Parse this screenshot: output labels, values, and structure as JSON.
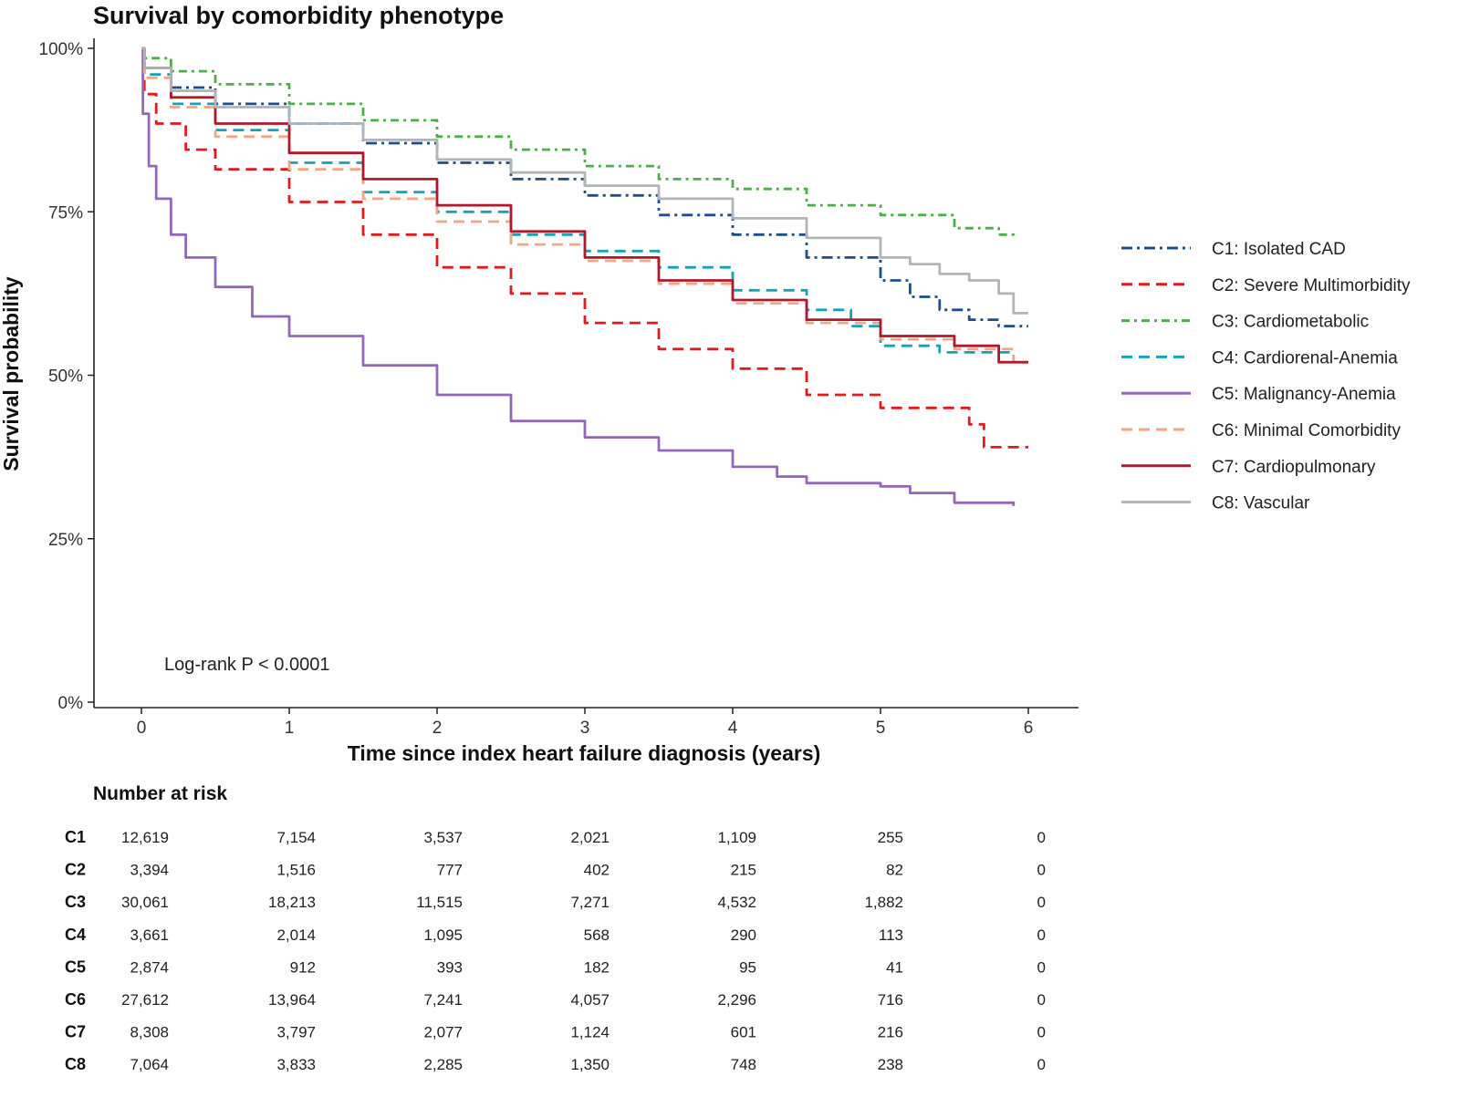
{
  "chart_data": {
    "type": "line",
    "title": "Survival by comorbidity phenotype",
    "xlabel": "Time since index heart failure diagnosis (years)",
    "ylabel": "Survival probability",
    "xlim": [
      0,
      6
    ],
    "ylim": [
      0,
      1
    ],
    "x_ticks": [
      0,
      1,
      2,
      3,
      4,
      5,
      6
    ],
    "y_ticks": [
      {
        "value": 0,
        "label": "0%"
      },
      {
        "value": 0.25,
        "label": "25%"
      },
      {
        "value": 0.5,
        "label": "50%"
      },
      {
        "value": 0.75,
        "label": "75%"
      },
      {
        "value": 1,
        "label": "100%"
      }
    ],
    "grid": false,
    "legend_position": "right",
    "annotation": "Log-rank P < 0.0001",
    "series": [
      {
        "name": "C1: Isolated CAD",
        "color": "#1f4e8c",
        "dash": "dashdot",
        "points": [
          [
            0,
            1.0
          ],
          [
            0.02,
            0.97
          ],
          [
            0.2,
            0.94
          ],
          [
            0.5,
            0.915
          ],
          [
            1,
            0.885
          ],
          [
            1.5,
            0.855
          ],
          [
            2,
            0.825
          ],
          [
            2.5,
            0.8
          ],
          [
            3,
            0.775
          ],
          [
            3.5,
            0.745
          ],
          [
            4,
            0.715
          ],
          [
            4.5,
            0.68
          ],
          [
            5,
            0.645
          ],
          [
            5.2,
            0.62
          ],
          [
            5.4,
            0.6
          ],
          [
            5.6,
            0.585
          ],
          [
            5.8,
            0.575
          ],
          [
            6.0,
            0.575
          ]
        ]
      },
      {
        "name": "C2: Severe Multimorbidity",
        "color": "#e31a1c",
        "dash": "dashed",
        "points": [
          [
            0,
            1.0
          ],
          [
            0.02,
            0.93
          ],
          [
            0.1,
            0.885
          ],
          [
            0.3,
            0.845
          ],
          [
            0.5,
            0.815
          ],
          [
            1,
            0.765
          ],
          [
            1.5,
            0.715
          ],
          [
            2,
            0.665
          ],
          [
            2.5,
            0.625
          ],
          [
            3,
            0.58
          ],
          [
            3.5,
            0.54
          ],
          [
            4,
            0.51
          ],
          [
            4.5,
            0.47
          ],
          [
            5,
            0.45
          ],
          [
            5.5,
            0.45
          ],
          [
            5.6,
            0.425
          ],
          [
            5.7,
            0.39
          ],
          [
            6.0,
            0.39
          ]
        ]
      },
      {
        "name": "C3: Cardiometabolic",
        "color": "#4daf4a",
        "dash": "dotdash",
        "points": [
          [
            0,
            1.0
          ],
          [
            0.02,
            0.985
          ],
          [
            0.2,
            0.965
          ],
          [
            0.5,
            0.945
          ],
          [
            1,
            0.915
          ],
          [
            1.5,
            0.89
          ],
          [
            2,
            0.865
          ],
          [
            2.5,
            0.845
          ],
          [
            3,
            0.82
          ],
          [
            3.5,
            0.8
          ],
          [
            4,
            0.785
          ],
          [
            4.5,
            0.76
          ],
          [
            5,
            0.745
          ],
          [
            5.5,
            0.725
          ],
          [
            5.8,
            0.715
          ],
          [
            5.9,
            0.71
          ]
        ]
      },
      {
        "name": "C4: Cardiorenal-Anemia",
        "color": "#17a2b8",
        "dash": "dashed",
        "points": [
          [
            0,
            1.0
          ],
          [
            0.02,
            0.96
          ],
          [
            0.2,
            0.915
          ],
          [
            0.5,
            0.875
          ],
          [
            1,
            0.825
          ],
          [
            1.5,
            0.78
          ],
          [
            2,
            0.75
          ],
          [
            2.5,
            0.715
          ],
          [
            3,
            0.69
          ],
          [
            3.5,
            0.665
          ],
          [
            4,
            0.63
          ],
          [
            4.5,
            0.6
          ],
          [
            4.8,
            0.575
          ],
          [
            5,
            0.545
          ],
          [
            5.4,
            0.535
          ],
          [
            5.9,
            0.53
          ]
        ]
      },
      {
        "name": "C5: Malignancy-Anemia",
        "color": "#9467bd",
        "dash": "solid",
        "points": [
          [
            0,
            1.0
          ],
          [
            0.01,
            0.9
          ],
          [
            0.05,
            0.82
          ],
          [
            0.1,
            0.77
          ],
          [
            0.2,
            0.715
          ],
          [
            0.3,
            0.68
          ],
          [
            0.5,
            0.635
          ],
          [
            0.75,
            0.59
          ],
          [
            1,
            0.56
          ],
          [
            1.5,
            0.515
          ],
          [
            2,
            0.47
          ],
          [
            2.5,
            0.43
          ],
          [
            3,
            0.405
          ],
          [
            3.5,
            0.385
          ],
          [
            4,
            0.36
          ],
          [
            4.3,
            0.345
          ],
          [
            4.5,
            0.335
          ],
          [
            5,
            0.33
          ],
          [
            5.2,
            0.32
          ],
          [
            5.5,
            0.305
          ],
          [
            5.9,
            0.3
          ]
        ]
      },
      {
        "name": "C6: Minimal Comorbidity",
        "color": "#f4a582",
        "dash": "dashed",
        "points": [
          [
            0,
            1.0
          ],
          [
            0.02,
            0.955
          ],
          [
            0.2,
            0.91
          ],
          [
            0.5,
            0.865
          ],
          [
            1,
            0.815
          ],
          [
            1.5,
            0.77
          ],
          [
            2,
            0.735
          ],
          [
            2.5,
            0.7
          ],
          [
            3,
            0.675
          ],
          [
            3.5,
            0.64
          ],
          [
            4,
            0.61
          ],
          [
            4.5,
            0.58
          ],
          [
            5,
            0.555
          ],
          [
            5.5,
            0.54
          ],
          [
            5.9,
            0.52
          ]
        ]
      },
      {
        "name": "C7: Cardiopulmonary",
        "color": "#b2182b",
        "dash": "solid",
        "points": [
          [
            0,
            1.0
          ],
          [
            0.02,
            0.97
          ],
          [
            0.2,
            0.925
          ],
          [
            0.5,
            0.885
          ],
          [
            1,
            0.84
          ],
          [
            1.5,
            0.8
          ],
          [
            2,
            0.76
          ],
          [
            2.5,
            0.72
          ],
          [
            3,
            0.68
          ],
          [
            3.5,
            0.645
          ],
          [
            4,
            0.615
          ],
          [
            4.5,
            0.585
          ],
          [
            5,
            0.56
          ],
          [
            5.5,
            0.545
          ],
          [
            5.8,
            0.52
          ],
          [
            6.0,
            0.52
          ]
        ]
      },
      {
        "name": "C8: Vascular",
        "color": "#b0b5b8",
        "dash": "solid",
        "points": [
          [
            0,
            1.0
          ],
          [
            0.02,
            0.97
          ],
          [
            0.2,
            0.935
          ],
          [
            0.5,
            0.91
          ],
          [
            1,
            0.885
          ],
          [
            1.5,
            0.86
          ],
          [
            2,
            0.83
          ],
          [
            2.5,
            0.81
          ],
          [
            3,
            0.79
          ],
          [
            3.5,
            0.77
          ],
          [
            4,
            0.74
          ],
          [
            4.5,
            0.71
          ],
          [
            5,
            0.68
          ],
          [
            5.2,
            0.67
          ],
          [
            5.4,
            0.655
          ],
          [
            5.6,
            0.645
          ],
          [
            5.8,
            0.625
          ],
          [
            5.9,
            0.595
          ],
          [
            6.0,
            0.595
          ]
        ]
      }
    ]
  },
  "risk_table": {
    "title": "Number at risk",
    "rows": [
      {
        "label": "C1",
        "values": [
          "12,619",
          "7,154",
          "3,537",
          "2,021",
          "1,109",
          "255",
          "0"
        ]
      },
      {
        "label": "C2",
        "values": [
          "3,394",
          "1,516",
          "777",
          "402",
          "215",
          "82",
          "0"
        ]
      },
      {
        "label": "C3",
        "values": [
          "30,061",
          "18,213",
          "11,515",
          "7,271",
          "4,532",
          "1,882",
          "0"
        ]
      },
      {
        "label": "C4",
        "values": [
          "3,661",
          "2,014",
          "1,095",
          "568",
          "290",
          "113",
          "0"
        ]
      },
      {
        "label": "C5",
        "values": [
          "2,874",
          "912",
          "393",
          "182",
          "95",
          "41",
          "0"
        ]
      },
      {
        "label": "C6",
        "values": [
          "27,612",
          "13,964",
          "7,241",
          "4,057",
          "2,296",
          "716",
          "0"
        ]
      },
      {
        "label": "C7",
        "values": [
          "8,308",
          "3,797",
          "2,077",
          "1,124",
          "601",
          "216",
          "0"
        ]
      },
      {
        "label": "C8",
        "values": [
          "7,064",
          "3,833",
          "2,285",
          "1,350",
          "748",
          "238",
          "0"
        ]
      }
    ]
  }
}
